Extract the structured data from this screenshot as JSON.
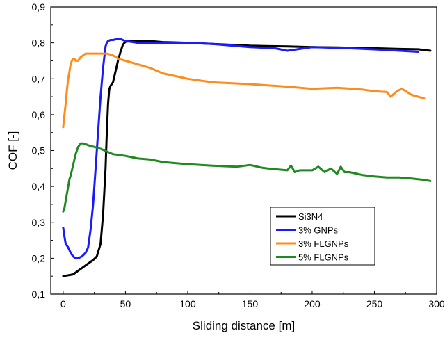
{
  "chart_data": {
    "type": "line",
    "title": "",
    "xlabel": "Sliding distance [m]",
    "ylabel": "COF [-]",
    "xlim": [
      -10,
      300
    ],
    "ylim": [
      0.1,
      0.9
    ],
    "x_ticks": [
      0,
      50,
      100,
      150,
      200,
      250,
      300
    ],
    "x_tick_labels": [
      "0",
      "50",
      "100",
      "150",
      "200",
      "250",
      "300"
    ],
    "y_ticks": [
      0.1,
      0.2,
      0.3,
      0.4,
      0.5,
      0.6,
      0.7,
      0.8,
      0.9
    ],
    "y_tick_labels": [
      "0,1",
      "0,2",
      "0,3",
      "0,4",
      "0,5",
      "0,6",
      "0,7",
      "0,8",
      "0,9"
    ],
    "grid": false,
    "legend_position": "bottom-right",
    "series": [
      {
        "name": "Si3N4",
        "color": "#000000",
        "x": [
          0,
          3,
          8,
          12,
          16,
          20,
          24,
          27,
          30,
          32,
          34,
          35,
          36,
          37,
          38,
          40,
          42,
          44,
          46,
          48,
          50,
          55,
          60,
          70,
          80,
          100,
          120,
          150,
          180,
          200,
          220,
          250,
          270,
          285,
          290,
          295
        ],
        "y": [
          0.15,
          0.152,
          0.155,
          0.165,
          0.175,
          0.185,
          0.195,
          0.205,
          0.24,
          0.32,
          0.45,
          0.55,
          0.63,
          0.67,
          0.68,
          0.69,
          0.72,
          0.75,
          0.775,
          0.795,
          0.803,
          0.805,
          0.806,
          0.805,
          0.802,
          0.8,
          0.797,
          0.792,
          0.79,
          0.788,
          0.787,
          0.785,
          0.783,
          0.782,
          0.78,
          0.778
        ]
      },
      {
        "name": "3% GNPs",
        "color": "#1a1aff",
        "x": [
          0,
          1,
          2,
          4,
          6,
          8,
          10,
          12,
          15,
          18,
          20,
          22,
          24,
          26,
          28,
          30,
          32,
          33,
          34,
          35,
          36,
          38,
          40,
          45,
          50,
          60,
          80,
          100,
          120,
          150,
          170,
          180,
          200,
          230,
          260,
          285
        ],
        "y": [
          0.285,
          0.26,
          0.24,
          0.23,
          0.215,
          0.205,
          0.2,
          0.2,
          0.205,
          0.215,
          0.23,
          0.28,
          0.35,
          0.45,
          0.55,
          0.65,
          0.73,
          0.76,
          0.79,
          0.8,
          0.805,
          0.808,
          0.808,
          0.812,
          0.805,
          0.8,
          0.8,
          0.8,
          0.797,
          0.788,
          0.785,
          0.778,
          0.788,
          0.785,
          0.78,
          0.775
        ]
      },
      {
        "name": "3% FLGNPs",
        "color": "#ff8c1a",
        "x": [
          0,
          1,
          2,
          3,
          4,
          5,
          6,
          7,
          8,
          9,
          10,
          12,
          14,
          16,
          18,
          20,
          25,
          30,
          35,
          40,
          45,
          50,
          60,
          70,
          80,
          100,
          120,
          150,
          180,
          200,
          220,
          240,
          250,
          260,
          263,
          268,
          272,
          280,
          290
        ],
        "y": [
          0.565,
          0.6,
          0.63,
          0.67,
          0.7,
          0.72,
          0.74,
          0.75,
          0.755,
          0.755,
          0.75,
          0.75,
          0.76,
          0.765,
          0.77,
          0.77,
          0.77,
          0.77,
          0.77,
          0.765,
          0.755,
          0.75,
          0.74,
          0.73,
          0.715,
          0.7,
          0.69,
          0.685,
          0.678,
          0.672,
          0.675,
          0.67,
          0.665,
          0.663,
          0.65,
          0.665,
          0.672,
          0.655,
          0.645
        ]
      },
      {
        "name": "5% FLGNPs",
        "color": "#1f8a1f",
        "x": [
          0,
          1,
          2,
          3,
          4,
          5,
          6,
          8,
          10,
          12,
          14,
          16,
          18,
          20,
          25,
          30,
          40,
          50,
          60,
          70,
          80,
          90,
          100,
          120,
          140,
          150,
          160,
          170,
          180,
          183,
          186,
          190,
          200,
          205,
          210,
          215,
          220,
          223,
          226,
          230,
          240,
          250,
          260,
          270,
          280,
          290,
          295
        ],
        "y": [
          0.33,
          0.34,
          0.36,
          0.38,
          0.4,
          0.42,
          0.43,
          0.46,
          0.49,
          0.51,
          0.52,
          0.52,
          0.518,
          0.515,
          0.51,
          0.505,
          0.49,
          0.485,
          0.478,
          0.475,
          0.468,
          0.465,
          0.462,
          0.458,
          0.455,
          0.46,
          0.452,
          0.448,
          0.445,
          0.458,
          0.44,
          0.445,
          0.445,
          0.455,
          0.44,
          0.45,
          0.435,
          0.455,
          0.44,
          0.44,
          0.432,
          0.428,
          0.425,
          0.425,
          0.422,
          0.418,
          0.415
        ]
      }
    ]
  }
}
